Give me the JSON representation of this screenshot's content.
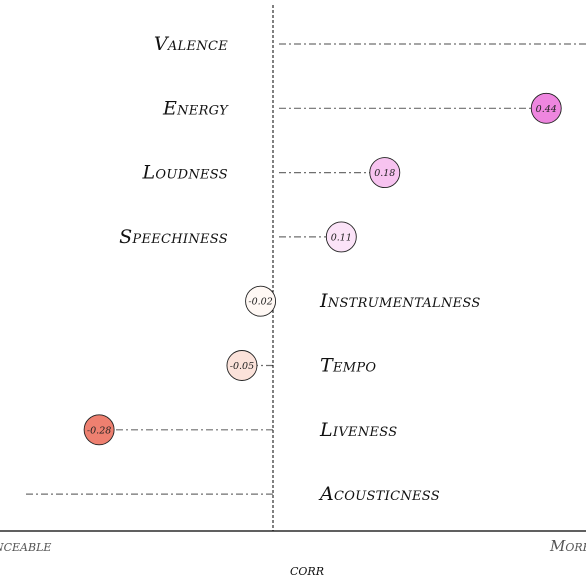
{
  "chart_data": {
    "type": "lollipop",
    "xlabel": "corr",
    "x_end_labels": {
      "left": "Danceable",
      "right": "More"
    },
    "xlim": [
      -0.38,
      0.55
    ],
    "zero_line": 0,
    "categories": [
      "Valence",
      "Energy",
      "Loudness",
      "Speechiness",
      "Instrumentalness",
      "Tempo",
      "Liveness",
      "Acousticness"
    ],
    "values": [
      0.57,
      0.44,
      0.18,
      0.11,
      -0.02,
      -0.05,
      -0.28,
      -0.4
    ],
    "value_labels": [
      "",
      "0.44",
      "0.18",
      "0.11",
      "-0.02",
      "-0.05",
      "-0.28",
      ""
    ],
    "grid": false,
    "legend": "none",
    "colors": {
      "positive_strong": "#ee86df",
      "positive_mid": "#f7c3f0",
      "positive_weak": "#fbe3f8",
      "neutral": "#fff8f4",
      "negative_weak": "#fbe2da",
      "negative_strong": "#ee8070",
      "stem": "#6f6f6f",
      "axis": "#000000"
    }
  }
}
